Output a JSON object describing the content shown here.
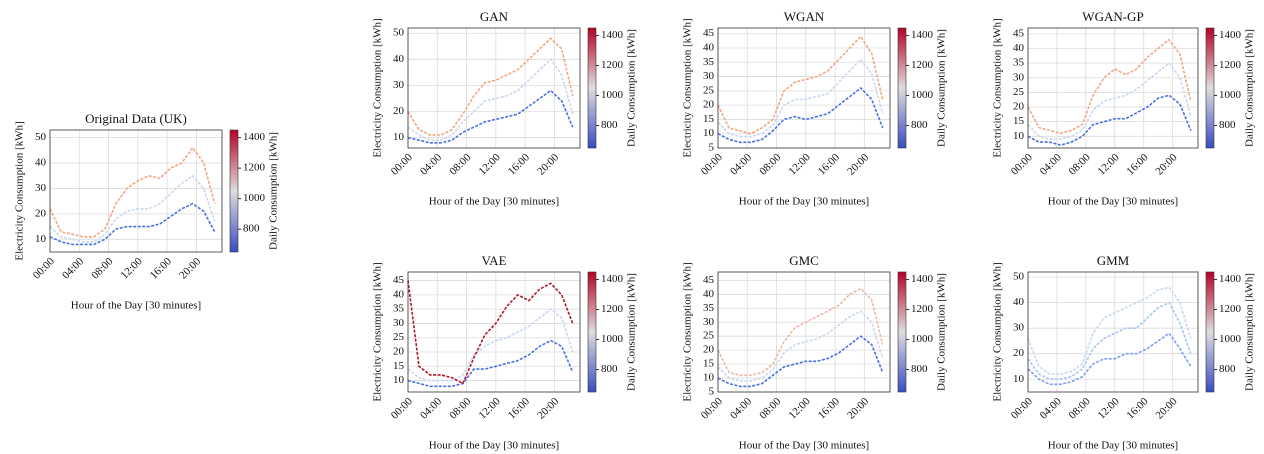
{
  "chart_data": [
    {
      "type": "line",
      "title": "Original Data (UK)",
      "x_label": "Hour of the Day [30 minutes]",
      "y_label": "Electricity Consumption [kWh]",
      "x": [
        0,
        3,
        6,
        9,
        12,
        15,
        18,
        21,
        24,
        27,
        30,
        33,
        36,
        39,
        42,
        45
      ],
      "xlim": [
        0,
        47
      ],
      "xticks": [
        {
          "value": 0,
          "label": "00:00"
        },
        {
          "value": 8,
          "label": "04:00"
        },
        {
          "value": 16,
          "label": "08:00"
        },
        {
          "value": 24,
          "label": "12:00"
        },
        {
          "value": 32,
          "label": "16:00"
        },
        {
          "value": 40,
          "label": "20:00"
        }
      ],
      "ylim": [
        5,
        53
      ],
      "yticks": [
        10,
        20,
        30,
        40,
        50
      ],
      "grid": true,
      "series": [
        {
          "color": "#4a6fe3",
          "values": [
            11,
            9,
            8,
            8,
            8,
            10,
            14,
            15,
            15,
            15,
            16,
            19,
            22,
            24,
            21,
            13
          ]
        },
        {
          "color": "#c9d7f0",
          "values": [
            15,
            11,
            10,
            9,
            9,
            12,
            18,
            21,
            22,
            22,
            24,
            28,
            32,
            35,
            30,
            17
          ]
        },
        {
          "color": "#f4a582",
          "values": [
            22,
            13,
            12,
            11,
            11,
            14,
            24,
            30,
            33,
            35,
            34,
            38,
            40,
            46,
            40,
            24
          ]
        }
      ],
      "colorbar_label": "Daily Consumption [kWh]",
      "clim": [
        650,
        1450
      ],
      "cticks": [
        800,
        1000,
        1200,
        1400
      ],
      "colormap": [
        "#3b4cc0",
        "#dddddd",
        "#b40426"
      ]
    },
    {
      "type": "line",
      "title": "GAN",
      "x_label": "Hour of the Day [30 minutes]",
      "y_label": "Electricity Consumption [kWh]",
      "x": [
        0,
        3,
        6,
        9,
        12,
        15,
        18,
        21,
        24,
        27,
        30,
        33,
        36,
        39,
        42,
        45
      ],
      "xlim": [
        0,
        47
      ],
      "xticks": [
        {
          "value": 0,
          "label": "00:00"
        },
        {
          "value": 8,
          "label": "04:00"
        },
        {
          "value": 16,
          "label": "08:00"
        },
        {
          "value": 24,
          "label": "12:00"
        },
        {
          "value": 32,
          "label": "16:00"
        },
        {
          "value": 40,
          "label": "20:00"
        }
      ],
      "ylim": [
        6,
        52
      ],
      "yticks": [
        10,
        20,
        30,
        40,
        50
      ],
      "grid": true,
      "series": [
        {
          "color": "#4a6fe3",
          "values": [
            10,
            9,
            8,
            8,
            9,
            12,
            14,
            16,
            17,
            18,
            19,
            22,
            25,
            28,
            24,
            14
          ]
        },
        {
          "color": "#c9d7f0",
          "values": [
            14,
            11,
            9,
            9,
            11,
            16,
            20,
            24,
            25,
            26,
            28,
            32,
            36,
            40,
            34,
            19
          ]
        },
        {
          "color": "#f4a582",
          "values": [
            20,
            13,
            11,
            11,
            13,
            19,
            26,
            31,
            32,
            34,
            36,
            40,
            44,
            48,
            44,
            26
          ]
        }
      ],
      "colorbar_label": "Daily Consumption [kWh]",
      "clim": [
        650,
        1450
      ],
      "cticks": [
        800,
        1000,
        1200,
        1400
      ],
      "colormap": [
        "#3b4cc0",
        "#dddddd",
        "#b40426"
      ]
    },
    {
      "type": "line",
      "title": "WGAN",
      "x_label": "Hour of the Day [30 minutes]",
      "y_label": "Electricity Consumption [kWh]",
      "x": [
        0,
        3,
        6,
        9,
        12,
        15,
        18,
        21,
        24,
        27,
        30,
        33,
        36,
        39,
        42,
        45
      ],
      "xlim": [
        0,
        47
      ],
      "xticks": [
        {
          "value": 0,
          "label": "00:00"
        },
        {
          "value": 8,
          "label": "04:00"
        },
        {
          "value": 16,
          "label": "08:00"
        },
        {
          "value": 24,
          "label": "12:00"
        },
        {
          "value": 32,
          "label": "16:00"
        },
        {
          "value": 40,
          "label": "20:00"
        }
      ],
      "ylim": [
        5,
        47
      ],
      "yticks": [
        5,
        10,
        15,
        20,
        25,
        30,
        35,
        40,
        45
      ],
      "grid": true,
      "series": [
        {
          "color": "#4a6fe3",
          "values": [
            10,
            8,
            7,
            7,
            8,
            11,
            15,
            16,
            15,
            16,
            17,
            20,
            23,
            26,
            22,
            12
          ]
        },
        {
          "color": "#c9d7f0",
          "values": [
            14,
            10,
            9,
            9,
            10,
            13,
            20,
            22,
            22,
            23,
            24,
            28,
            32,
            36,
            31,
            17
          ]
        },
        {
          "color": "#f4a582",
          "values": [
            20,
            12,
            11,
            10,
            12,
            15,
            25,
            28,
            29,
            30,
            32,
            36,
            40,
            44,
            38,
            22
          ]
        }
      ],
      "colorbar_label": "Daily Consumption [kWh]",
      "clim": [
        650,
        1450
      ],
      "cticks": [
        800,
        1000,
        1200,
        1400
      ],
      "colormap": [
        "#3b4cc0",
        "#dddddd",
        "#b40426"
      ]
    },
    {
      "type": "line",
      "title": "WGAN-GP",
      "x_label": "Hour of the Day [30 minutes]",
      "y_label": "Electricity Consumption [kWh]",
      "x": [
        0,
        3,
        6,
        9,
        12,
        15,
        18,
        21,
        24,
        27,
        30,
        33,
        36,
        39,
        42,
        45
      ],
      "xlim": [
        0,
        47
      ],
      "xticks": [
        {
          "value": 0,
          "label": "00:00"
        },
        {
          "value": 8,
          "label": "04:00"
        },
        {
          "value": 16,
          "label": "08:00"
        },
        {
          "value": 24,
          "label": "12:00"
        },
        {
          "value": 32,
          "label": "16:00"
        },
        {
          "value": 40,
          "label": "20:00"
        }
      ],
      "ylim": [
        6,
        47
      ],
      "yticks": [
        10,
        15,
        20,
        25,
        30,
        35,
        40,
        45
      ],
      "grid": true,
      "series": [
        {
          "color": "#4a6fe3",
          "values": [
            10,
            8,
            8,
            7,
            8,
            10,
            14,
            15,
            16,
            16,
            18,
            20,
            23,
            24,
            21,
            12
          ]
        },
        {
          "color": "#c9d7f0",
          "values": [
            14,
            10,
            9,
            9,
            10,
            12,
            19,
            22,
            23,
            24,
            26,
            29,
            32,
            35,
            30,
            17
          ]
        },
        {
          "color": "#f4a582",
          "values": [
            20,
            13,
            12,
            11,
            12,
            14,
            24,
            30,
            33,
            31,
            33,
            37,
            40,
            43,
            38,
            22
          ]
        }
      ],
      "colorbar_label": "Daily Consumption [kWh]",
      "clim": [
        650,
        1450
      ],
      "cticks": [
        800,
        1000,
        1200,
        1400
      ],
      "colormap": [
        "#3b4cc0",
        "#dddddd",
        "#b40426"
      ]
    },
    {
      "type": "line",
      "title": "VAE",
      "x_label": "Hour of the Day [30 minutes]",
      "y_label": "Electricity Consumption [kWh]",
      "x": [
        0,
        3,
        6,
        9,
        12,
        15,
        18,
        21,
        24,
        27,
        30,
        33,
        36,
        39,
        42,
        45
      ],
      "xlim": [
        0,
        47
      ],
      "xticks": [
        {
          "value": 0,
          "label": "00:00"
        },
        {
          "value": 8,
          "label": "04:00"
        },
        {
          "value": 16,
          "label": "08:00"
        },
        {
          "value": 24,
          "label": "12:00"
        },
        {
          "value": 32,
          "label": "16:00"
        },
        {
          "value": 40,
          "label": "20:00"
        }
      ],
      "ylim": [
        6,
        48
      ],
      "yticks": [
        10,
        15,
        20,
        25,
        30,
        35,
        40,
        45
      ],
      "grid": true,
      "series": [
        {
          "color": "#4a6fe3",
          "values": [
            10,
            9,
            8,
            8,
            8,
            9,
            14,
            14,
            15,
            16,
            17,
            19,
            22,
            24,
            22,
            13
          ]
        },
        {
          "color": "#c9d7f0",
          "values": [
            14,
            11,
            10,
            10,
            10,
            12,
            19,
            22,
            24,
            25,
            27,
            29,
            32,
            35,
            32,
            20
          ]
        },
        {
          "color": "#b2182b",
          "values": [
            45,
            15,
            12,
            12,
            11,
            9,
            18,
            26,
            30,
            36,
            40,
            38,
            42,
            44,
            40,
            30
          ]
        }
      ],
      "colorbar_label": "Daily Consumption [kWh]",
      "clim": [
        650,
        1450
      ],
      "cticks": [
        800,
        1000,
        1200,
        1400
      ],
      "colormap": [
        "#3b4cc0",
        "#dddddd",
        "#b40426"
      ]
    },
    {
      "type": "line",
      "title": "GMC",
      "x_label": "Hour of the Day [30 minutes]",
      "y_label": "Electricity Consumption [kWh]",
      "x": [
        0,
        3,
        6,
        9,
        12,
        15,
        18,
        21,
        24,
        27,
        30,
        33,
        36,
        39,
        42,
        45
      ],
      "xlim": [
        0,
        47
      ],
      "xticks": [
        {
          "value": 0,
          "label": "00:00"
        },
        {
          "value": 8,
          "label": "04:00"
        },
        {
          "value": 16,
          "label": "08:00"
        },
        {
          "value": 24,
          "label": "12:00"
        },
        {
          "value": 32,
          "label": "16:00"
        },
        {
          "value": 40,
          "label": "20:00"
        }
      ],
      "ylim": [
        5,
        48
      ],
      "yticks": [
        5,
        10,
        15,
        20,
        25,
        30,
        35,
        40,
        45
      ],
      "grid": true,
      "series": [
        {
          "color": "#4a6fe3",
          "values": [
            10,
            8,
            7,
            7,
            8,
            11,
            14,
            15,
            16,
            16,
            17,
            19,
            22,
            25,
            22,
            12
          ]
        },
        {
          "color": "#c9d7f0",
          "values": [
            14,
            10,
            9,
            9,
            10,
            13,
            19,
            22,
            23,
            24,
            26,
            29,
            32,
            34,
            30,
            17
          ]
        },
        {
          "color": "#e8b9a5",
          "values": [
            20,
            12,
            11,
            11,
            12,
            15,
            23,
            28,
            30,
            32,
            34,
            36,
            40,
            42,
            38,
            22
          ]
        }
      ],
      "colorbar_label": "Daily Consumption [kWh]",
      "clim": [
        650,
        1450
      ],
      "cticks": [
        800,
        1000,
        1200,
        1400
      ],
      "colormap": [
        "#3b4cc0",
        "#dddddd",
        "#b40426"
      ]
    },
    {
      "type": "line",
      "title": "GMM",
      "x_label": "Hour of the Day [30 minutes]",
      "y_label": "Electricity Consumption [kWh]",
      "x": [
        0,
        3,
        6,
        9,
        12,
        15,
        18,
        21,
        24,
        27,
        30,
        33,
        36,
        39,
        42,
        45
      ],
      "xlim": [
        0,
        47
      ],
      "xticks": [
        {
          "value": 0,
          "label": "00:00"
        },
        {
          "value": 8,
          "label": "04:00"
        },
        {
          "value": 16,
          "label": "08:00"
        },
        {
          "value": 24,
          "label": "12:00"
        },
        {
          "value": 32,
          "label": "16:00"
        },
        {
          "value": 40,
          "label": "20:00"
        }
      ],
      "ylim": [
        5,
        52
      ],
      "yticks": [
        10,
        20,
        30,
        40,
        50
      ],
      "grid": true,
      "series": [
        {
          "color": "#7d9ff0",
          "values": [
            14,
            10,
            8,
            8,
            9,
            11,
            16,
            18,
            18,
            20,
            20,
            22,
            25,
            28,
            22,
            15
          ]
        },
        {
          "color": "#a9c4f5",
          "values": [
            18,
            12,
            10,
            10,
            11,
            14,
            22,
            26,
            28,
            30,
            30,
            34,
            38,
            40,
            32,
            20
          ]
        },
        {
          "color": "#c9d7f0",
          "values": [
            26,
            15,
            12,
            12,
            13,
            16,
            28,
            34,
            36,
            38,
            40,
            42,
            45,
            46,
            40,
            26
          ]
        }
      ],
      "colorbar_label": "Daily Consumption [kWh]",
      "clim": [
        650,
        1450
      ],
      "cticks": [
        800,
        1000,
        1200,
        1400
      ],
      "colormap": [
        "#3b4cc0",
        "#dddddd",
        "#b40426"
      ]
    }
  ]
}
